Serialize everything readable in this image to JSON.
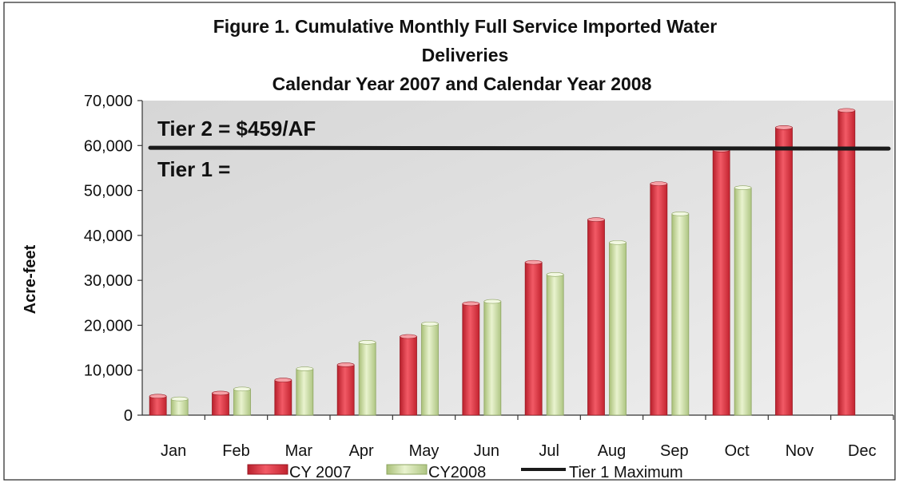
{
  "chart_data": {
    "type": "bar",
    "title_lines": [
      "Figure 1. Cumulative Monthly Full Service Imported Water",
      "Deliveries",
      "Calendar Year 2007 and Calendar Year 2008"
    ],
    "xlabel": "",
    "ylabel": "Acre-feet",
    "ylim": [
      0,
      70000
    ],
    "yticks": [
      0,
      10000,
      20000,
      30000,
      40000,
      50000,
      60000,
      70000
    ],
    "ytick_labels": [
      "0",
      "10,000",
      "20,000",
      "30,000",
      "40,000",
      "50,000",
      "60,000",
      "70,000"
    ],
    "categories": [
      "Jan",
      "Feb",
      "Mar",
      "Apr",
      "May",
      "Jun",
      "Jul",
      "Aug",
      "Sep",
      "Oct",
      "Nov",
      "Dec"
    ],
    "series": [
      {
        "name": "CY 2007",
        "color": "#e0303e",
        "values": [
          4200,
          4900,
          7800,
          11200,
          17500,
          24800,
          34000,
          43500,
          51500,
          59000,
          64000,
          67800
        ]
      },
      {
        "name": "CY2008",
        "color": "#c9dca0",
        "values": [
          3600,
          5800,
          10300,
          16200,
          20300,
          25300,
          31300,
          38400,
          44800,
          50600,
          null,
          null
        ]
      }
    ],
    "reference_line": {
      "name": "Tier 1 Maximum",
      "value": 59500,
      "color": "#1a1a1a"
    },
    "annotations": [
      "Tier 2 = $459/AF",
      "Tier 1 ="
    ],
    "legend_position": "bottom",
    "grid": false
  }
}
